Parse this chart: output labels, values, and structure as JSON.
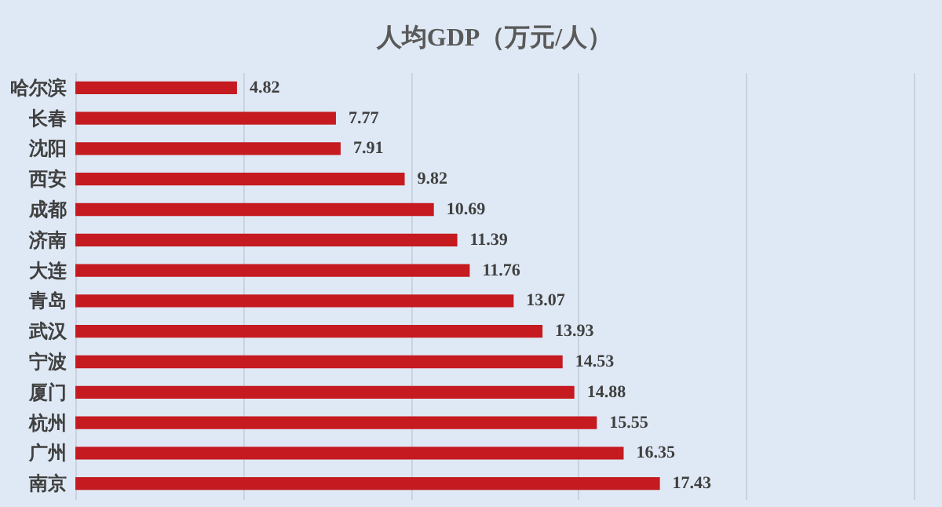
{
  "chart_data": {
    "type": "bar",
    "title": "人均GDP（万元/人）",
    "orientation": "horizontal",
    "categories": [
      "哈尔滨",
      "长春",
      "沈阳",
      "西安",
      "成都",
      "济南",
      "大连",
      "青岛",
      "武汉",
      "宁波",
      "厦门",
      "杭州",
      "广州",
      "南京"
    ],
    "values": [
      4.82,
      7.77,
      7.91,
      9.82,
      10.69,
      11.39,
      11.76,
      13.07,
      13.93,
      14.53,
      14.88,
      15.55,
      16.35,
      17.43
    ],
    "color": "#c41a20",
    "data_labels": true,
    "grid": "x",
    "tick_labels": "y",
    "xlim": [
      0,
      25
    ],
    "xticks": [
      {
        "value": 0,
        "label": null
      },
      {
        "value": 5,
        "label": null
      },
      {
        "value": 10,
        "label": null
      },
      {
        "value": 15,
        "label": null
      },
      {
        "value": 20,
        "label": null
      },
      {
        "value": 25,
        "label": null
      }
    ]
  }
}
